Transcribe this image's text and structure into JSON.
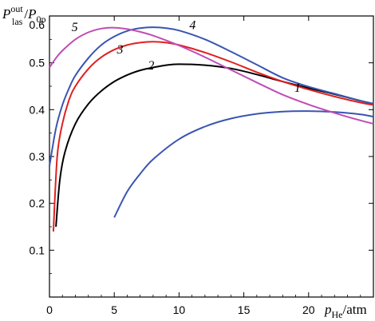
{
  "chart_data": {
    "type": "line",
    "ylabel": {
      "main": "P",
      "sup": "out",
      "sub": "las",
      "sep": "/",
      "main2": "P",
      "sub2": "0p"
    },
    "xlabel": {
      "main": "p",
      "sub": "He",
      "unit": "/atm"
    },
    "xlim": [
      0,
      25
    ],
    "ylim": [
      0,
      0.6
    ],
    "x_ticks": [
      0,
      5,
      10,
      15,
      20
    ],
    "x_tick_labels": [
      "0",
      "5",
      "10",
      "15",
      "20"
    ],
    "y_ticks": [
      0.1,
      0.2,
      0.3,
      0.4,
      0.5
    ],
    "y_tick_labels": [
      "0.1",
      "0.2",
      "0.3",
      "0.4",
      "0.5"
    ],
    "y_top_label": "0.6",
    "grid": false,
    "series": [
      {
        "name": "1",
        "color": "#3a55b0",
        "x": [
          5,
          6,
          7,
          8,
          10,
          12,
          14,
          16,
          18,
          20,
          22,
          24,
          25
        ],
        "y": [
          0.17,
          0.225,
          0.263,
          0.294,
          0.337,
          0.364,
          0.381,
          0.391,
          0.396,
          0.397,
          0.395,
          0.39,
          0.385
        ],
        "label_x": 18.9,
        "label_y": 0.438
      },
      {
        "name": "2",
        "color": "#000000",
        "x": [
          0.5,
          0.8,
          1.2,
          2,
          3,
          4,
          5,
          6,
          7,
          8,
          9,
          10,
          12,
          14,
          16,
          18,
          20,
          22,
          24,
          25
        ],
        "y": [
          0.15,
          0.25,
          0.31,
          0.37,
          0.412,
          0.44,
          0.46,
          0.474,
          0.484,
          0.49,
          0.495,
          0.497,
          0.495,
          0.488,
          0.475,
          0.46,
          0.446,
          0.433,
          0.419,
          0.412
        ],
        "label_x": 7.6,
        "label_y": 0.486
      },
      {
        "name": "3",
        "color": "#e02020",
        "x": [
          0.3,
          0.6,
          1,
          1.5,
          2,
          3,
          4,
          5,
          6,
          7,
          8,
          9,
          10,
          12,
          14,
          16,
          18,
          20,
          22,
          24,
          25
        ],
        "y": [
          0.14,
          0.3,
          0.37,
          0.42,
          0.45,
          0.487,
          0.512,
          0.528,
          0.538,
          0.543,
          0.545,
          0.543,
          0.538,
          0.522,
          0.502,
          0.48,
          0.46,
          0.443,
          0.428,
          0.415,
          0.41
        ],
        "label_x": 5.2,
        "label_y": 0.52
      },
      {
        "name": "4",
        "color": "#3a55b0",
        "x": [
          0,
          0.5,
          1,
          1.5,
          2,
          3,
          4,
          5,
          6,
          7,
          8,
          9,
          10,
          12,
          14,
          16,
          18,
          20,
          22,
          24,
          25
        ],
        "y": [
          0.28,
          0.36,
          0.41,
          0.445,
          0.473,
          0.51,
          0.538,
          0.556,
          0.568,
          0.574,
          0.576,
          0.574,
          0.569,
          0.55,
          0.524,
          0.496,
          0.468,
          0.449,
          0.434,
          0.419,
          0.413
        ],
        "label_x": 10.8,
        "label_y": 0.572
      },
      {
        "name": "5",
        "color": "#c04cb4",
        "x": [
          0,
          0.5,
          1,
          2,
          3,
          4,
          5,
          6,
          7,
          8,
          10,
          12,
          14,
          16,
          18,
          20,
          22,
          24,
          25
        ],
        "y": [
          0.49,
          0.51,
          0.526,
          0.55,
          0.565,
          0.573,
          0.575,
          0.572,
          0.566,
          0.558,
          0.537,
          0.512,
          0.485,
          0.458,
          0.432,
          0.411,
          0.393,
          0.377,
          0.37
        ],
        "label_x": 1.7,
        "label_y": 0.568
      }
    ]
  }
}
